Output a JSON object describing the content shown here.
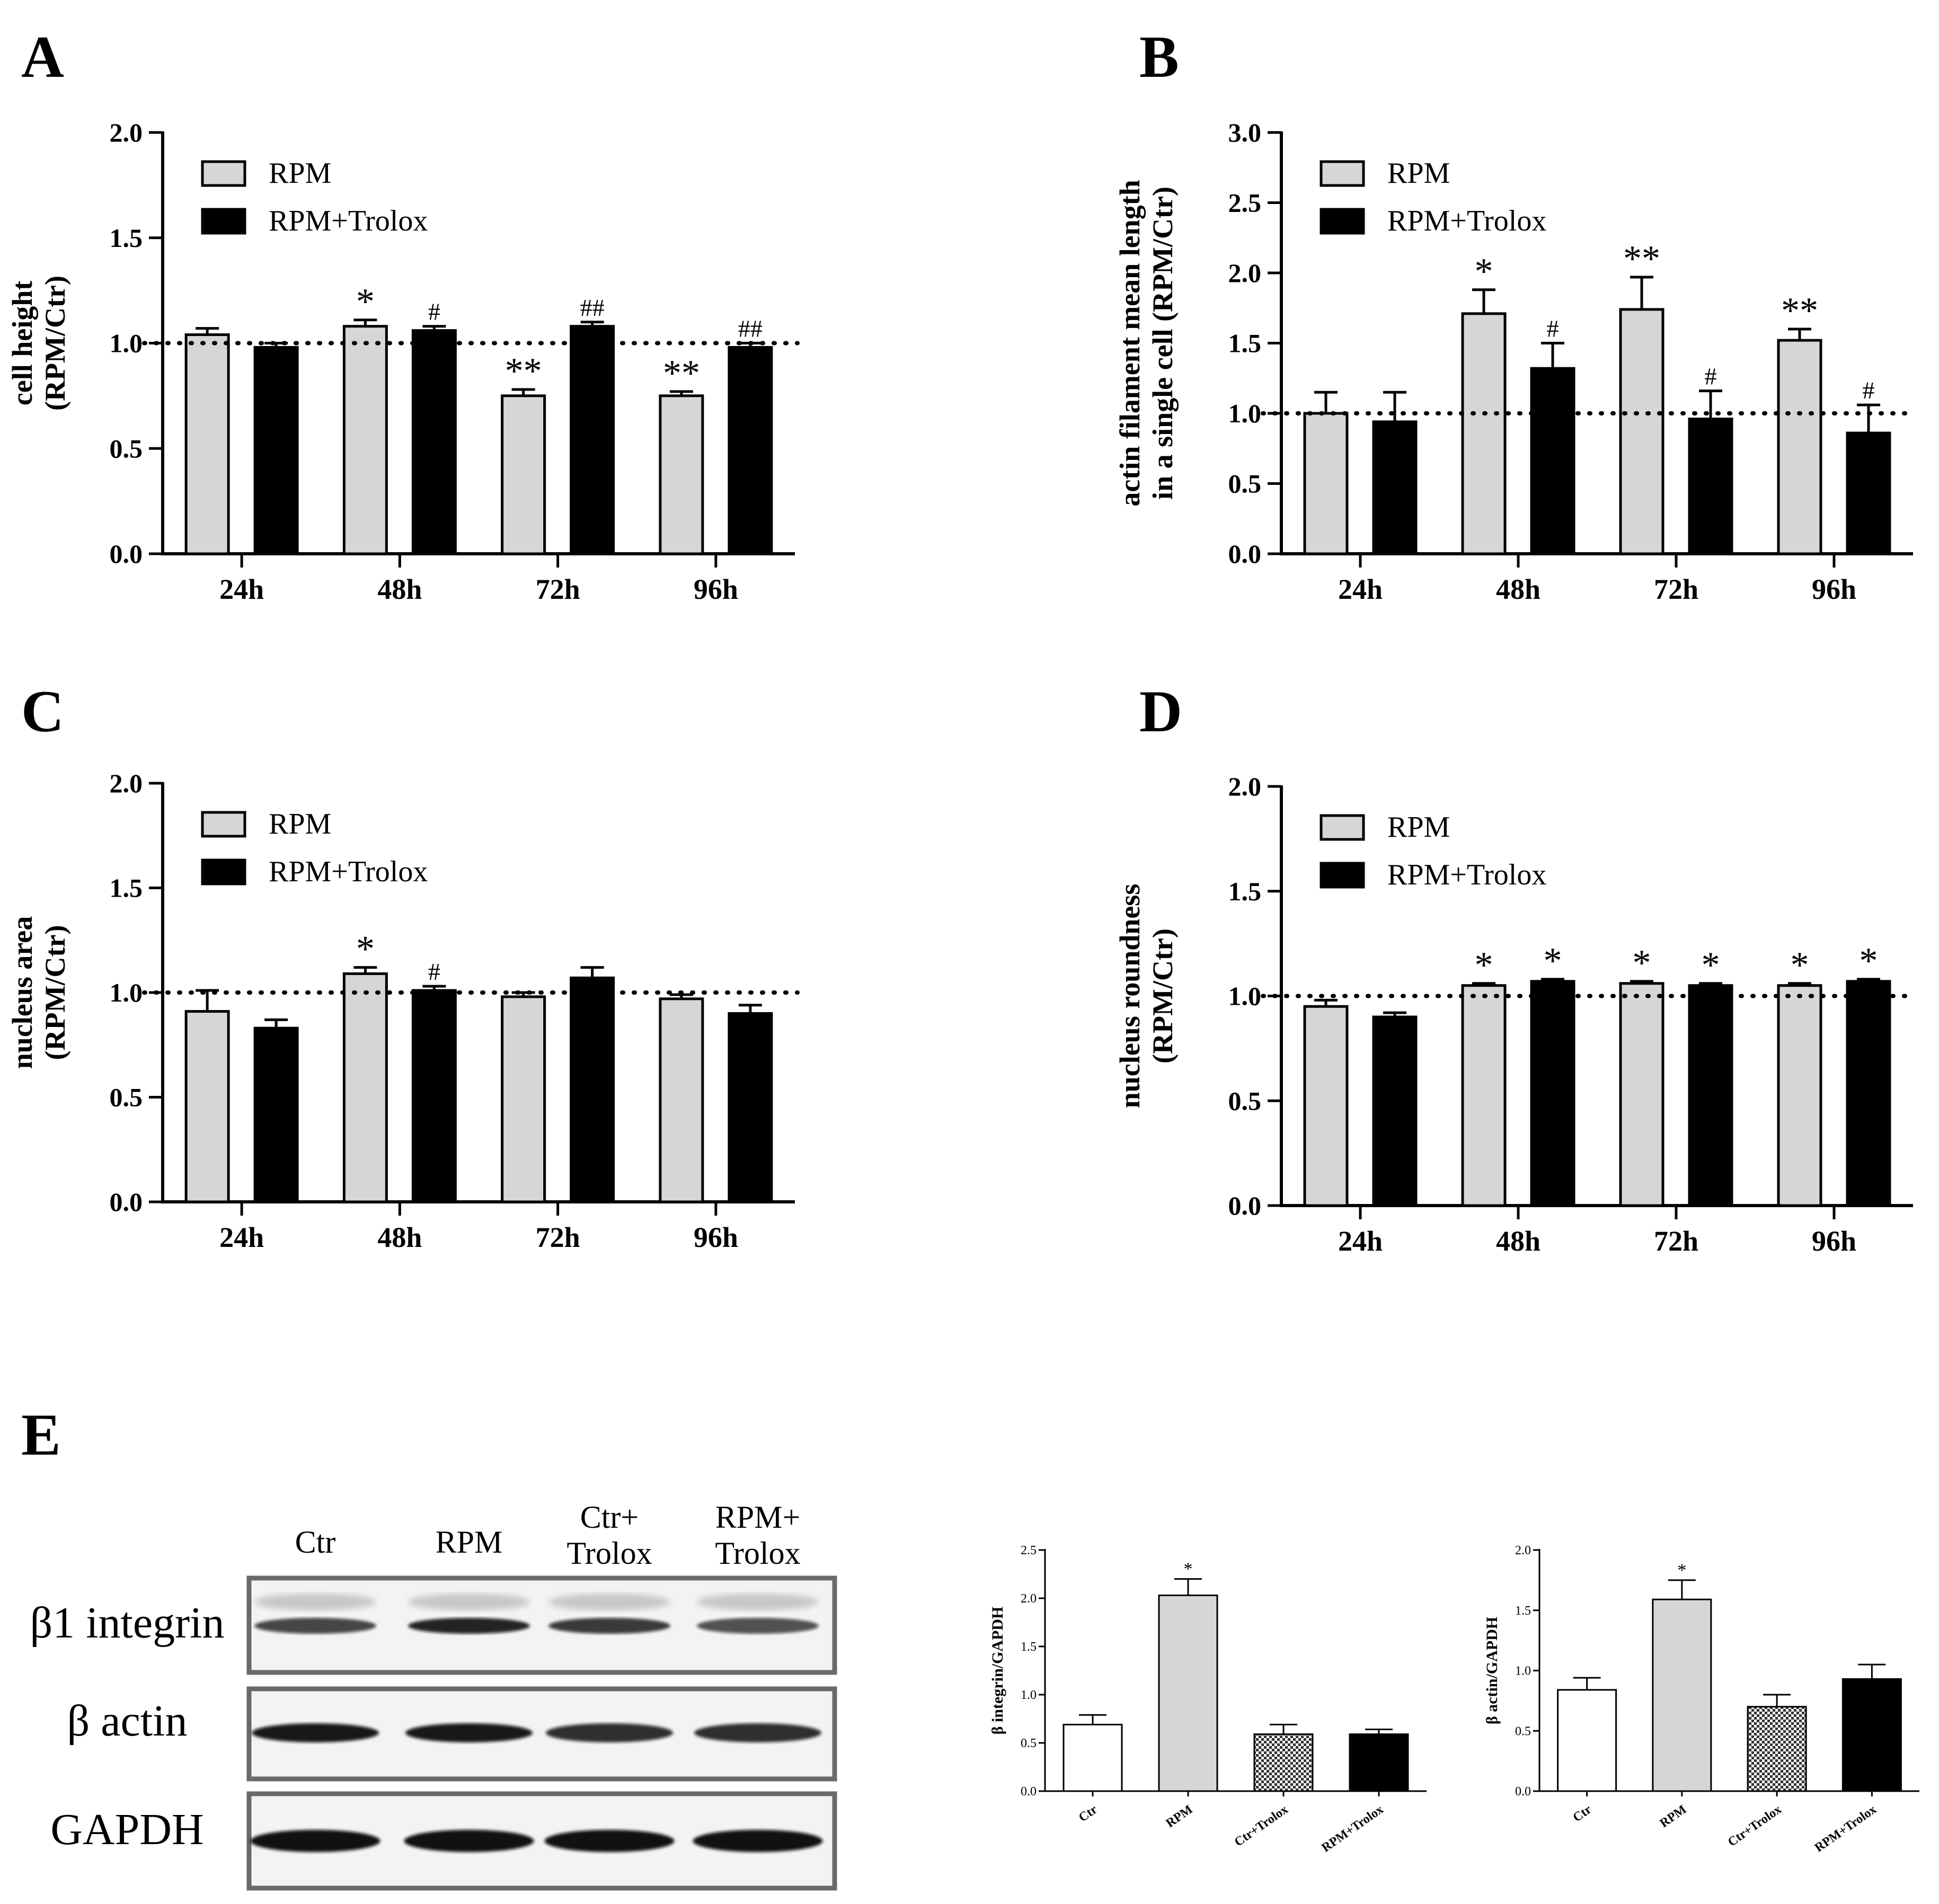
{
  "panel_letters": [
    "A",
    "B",
    "C",
    "D",
    "E"
  ],
  "colors": {
    "rpm": "#d6d6d6",
    "trolox": "#000000",
    "ctr": "#ffffff",
    "axis": "#000000"
  },
  "chart_data": [
    {
      "panel": "A",
      "type": "bar",
      "categories": [
        "24h",
        "48h",
        "72h",
        "96h"
      ],
      "series": [
        {
          "name": "RPM",
          "values": [
            1.04,
            1.08,
            0.75,
            0.75
          ],
          "errors": [
            0.03,
            0.03,
            0.03,
            0.02
          ],
          "marks": [
            "",
            "*",
            "**",
            "**"
          ]
        },
        {
          "name": "RPM+Trolox",
          "values": [
            0.98,
            1.06,
            1.08,
            0.98
          ],
          "errors": [
            0.02,
            0.02,
            0.02,
            0.02
          ],
          "marks": [
            "",
            "#",
            "##",
            "##"
          ]
        }
      ],
      "ylabel": [
        "cell height",
        "(RPM/Ctr)"
      ],
      "ylim": [
        0,
        2.0
      ],
      "yticks": [
        "0.0",
        "0.5",
        "1.0",
        "1.5",
        "2.0"
      ],
      "reference_line": 1.0,
      "legend": "top-left"
    },
    {
      "panel": "B",
      "type": "bar",
      "categories": [
        "24h",
        "48h",
        "72h",
        "96h"
      ],
      "series": [
        {
          "name": "RPM",
          "values": [
            1.0,
            1.71,
            1.74,
            1.52
          ],
          "errors": [
            0.15,
            0.17,
            0.23,
            0.08
          ],
          "marks": [
            "",
            "*",
            "**",
            "**"
          ]
        },
        {
          "name": "RPM+Trolox",
          "values": [
            0.94,
            1.32,
            0.96,
            0.86
          ],
          "errors": [
            0.21,
            0.18,
            0.2,
            0.2
          ],
          "marks": [
            "",
            "#",
            "#",
            "#"
          ]
        }
      ],
      "ylabel": [
        "actin filament mean length",
        "in a single cell (RPM/Ctr)"
      ],
      "ylim": [
        0,
        3.0
      ],
      "yticks": [
        "0.0",
        "0.5",
        "1.0",
        "1.5",
        "2.0",
        "2.5",
        "3.0"
      ],
      "reference_line": 1.0,
      "legend": "top-left"
    },
    {
      "panel": "C",
      "type": "bar",
      "categories": [
        "24h",
        "48h",
        "72h",
        "96h"
      ],
      "series": [
        {
          "name": "RPM",
          "values": [
            0.91,
            1.09,
            0.98,
            0.97
          ],
          "errors": [
            0.1,
            0.03,
            0.02,
            0.02
          ],
          "marks": [
            "",
            "*",
            "",
            ""
          ]
        },
        {
          "name": "RPM+Trolox",
          "values": [
            0.83,
            1.01,
            1.07,
            0.9
          ],
          "errors": [
            0.04,
            0.02,
            0.05,
            0.04
          ],
          "marks": [
            "",
            "#",
            "",
            ""
          ]
        }
      ],
      "ylabel": [
        "nucleus area",
        "(RPM/Ctr)"
      ],
      "ylim": [
        0,
        2.0
      ],
      "yticks": [
        "0.0",
        "0.5",
        "1.0",
        "1.5",
        "2.0"
      ],
      "reference_line": 1.0,
      "legend": "top-left"
    },
    {
      "panel": "D",
      "type": "bar",
      "categories": [
        "24h",
        "48h",
        "72h",
        "96h"
      ],
      "series": [
        {
          "name": "RPM",
          "values": [
            0.95,
            1.05,
            1.06,
            1.05
          ],
          "errors": [
            0.03,
            0.01,
            0.01,
            0.01
          ],
          "marks": [
            "",
            "*",
            "*",
            "*"
          ]
        },
        {
          "name": "RPM+Trolox",
          "values": [
            0.9,
            1.07,
            1.05,
            1.07
          ],
          "errors": [
            0.02,
            0.01,
            0.01,
            0.01
          ],
          "marks": [
            "",
            "*",
            "*",
            "*"
          ]
        }
      ],
      "ylabel": [
        "nucleus roundness",
        "(RPM/Ctr)"
      ],
      "ylim": [
        0,
        2.0
      ],
      "yticks": [
        "0.0",
        "0.5",
        "1.0",
        "1.5",
        "2.0"
      ],
      "reference_line": 1.0,
      "legend": "top-left"
    },
    {
      "panel": "E1",
      "type": "bar",
      "categories": [
        "Ctr",
        "RPM",
        "Ctr+Trolox",
        "RPM+Trolox"
      ],
      "values": [
        0.69,
        2.03,
        0.59,
        0.59
      ],
      "errors": [
        0.1,
        0.17,
        0.1,
        0.05
      ],
      "marks": [
        "",
        "*",
        "",
        ""
      ],
      "fills": [
        "white",
        "gray",
        "checker",
        "black"
      ],
      "ylabel": [
        "β integrin/GAPDH"
      ],
      "ylim": [
        0,
        2.5
      ],
      "yticks": [
        "0.0",
        "0.5",
        "1.0",
        "1.5",
        "2.0",
        "2.5"
      ]
    },
    {
      "panel": "E2",
      "type": "bar",
      "categories": [
        "Ctr",
        "RPM",
        "Ctr+Trolox",
        "RPM+Trolox"
      ],
      "values": [
        0.84,
        1.59,
        0.7,
        0.93
      ],
      "errors": [
        0.1,
        0.16,
        0.1,
        0.12
      ],
      "marks": [
        "",
        "*",
        "",
        ""
      ],
      "fills": [
        "white",
        "gray",
        "checker",
        "black"
      ],
      "ylabel": [
        "β actin/GAPDH"
      ],
      "ylim": [
        0,
        2.0
      ],
      "yticks": [
        "0.0",
        "0.5",
        "1.0",
        "1.5",
        "2.0"
      ]
    }
  ],
  "blot": {
    "lane_labels": [
      "Ctr",
      "RPM",
      "Ctr+\nTrolox",
      "RPM+\nTrolox"
    ],
    "row_labels": [
      "β1 integrin",
      "β actin",
      "GAPDH"
    ]
  }
}
